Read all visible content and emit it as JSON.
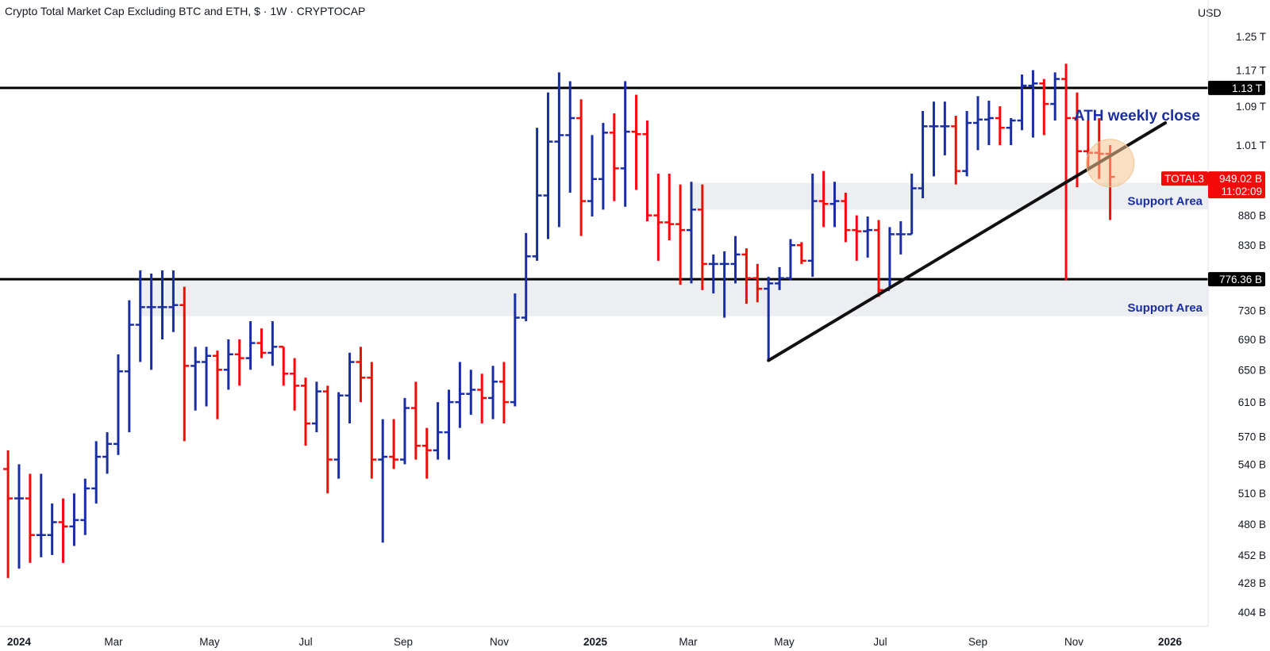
{
  "header": {
    "title": "Crypto Total Market Cap Excluding BTC and ETH, $ · 1W · CRYPTOCAP",
    "currency": "USD"
  },
  "colors": {
    "up": "#1a2ea3",
    "down": "#f50a0a",
    "level_line": "#000000",
    "support_zone": "#eceef1",
    "highlight": "#f6c48f",
    "annotation": "#1a2ea3"
  },
  "chart_data": {
    "type": "bar",
    "style": "ohlc",
    "timeframe": "1W",
    "symbol": "TOTAL3",
    "y_scale": "log",
    "ylim": [
      385000000000,
      1320000000000
    ],
    "y_ticks": [
      {
        "value": 1250000000000,
        "label": "1.25 T"
      },
      {
        "value": 1170000000000,
        "label": "1.17 T"
      },
      {
        "value": 1090000000000,
        "label": "1.09 T"
      },
      {
        "value": 1010000000000,
        "label": "1.01 T"
      },
      {
        "value": 880000000000,
        "label": "880 B"
      },
      {
        "value": 830000000000,
        "label": "830 B"
      },
      {
        "value": 730000000000,
        "label": "730 B"
      },
      {
        "value": 690000000000,
        "label": "690 B"
      },
      {
        "value": 650000000000,
        "label": "650 B"
      },
      {
        "value": 610000000000,
        "label": "610 B"
      },
      {
        "value": 570000000000,
        "label": "570 B"
      },
      {
        "value": 540000000000,
        "label": "540 B"
      },
      {
        "value": 510000000000,
        "label": "510 B"
      },
      {
        "value": 480000000000,
        "label": "480 B"
      },
      {
        "value": 452000000000,
        "label": "452 B"
      },
      {
        "value": 428000000000,
        "label": "428 B"
      },
      {
        "value": 404000000000,
        "label": "404 B"
      }
    ],
    "x_ticks": [
      {
        "date": "2024-01-01",
        "label": "2024",
        "bold": true
      },
      {
        "date": "2024-03-01",
        "label": "Mar",
        "bold": false
      },
      {
        "date": "2024-05-01",
        "label": "May",
        "bold": false
      },
      {
        "date": "2024-07-01",
        "label": "Jul",
        "bold": false
      },
      {
        "date": "2024-09-01",
        "label": "Sep",
        "bold": false
      },
      {
        "date": "2024-11-01",
        "label": "Nov",
        "bold": false
      },
      {
        "date": "2025-01-01",
        "label": "2025",
        "bold": true
      },
      {
        "date": "2025-03-01",
        "label": "Mar",
        "bold": false
      },
      {
        "date": "2025-05-01",
        "label": "May",
        "bold": false
      },
      {
        "date": "2025-07-01",
        "label": "Jul",
        "bold": false
      },
      {
        "date": "2025-09-01",
        "label": "Sep",
        "bold": false
      },
      {
        "date": "2025-11-01",
        "label": "Nov",
        "bold": false
      },
      {
        "date": "2026-01-01",
        "label": "2026",
        "bold": true
      }
    ],
    "bars": [
      {
        "date": "2023-12-25",
        "o": 535,
        "h": 555,
        "l": 432,
        "c": 505
      },
      {
        "date": "2024-01-01",
        "o": 505,
        "h": 540,
        "l": 440,
        "c": 505
      },
      {
        "date": "2024-01-08",
        "o": 505,
        "h": 530,
        "l": 445,
        "c": 470
      },
      {
        "date": "2024-01-15",
        "o": 470,
        "h": 530,
        "l": 450,
        "c": 470
      },
      {
        "date": "2024-01-22",
        "o": 470,
        "h": 500,
        "l": 452,
        "c": 482
      },
      {
        "date": "2024-01-29",
        "o": 482,
        "h": 505,
        "l": 445,
        "c": 478
      },
      {
        "date": "2024-02-05",
        "o": 478,
        "h": 510,
        "l": 460,
        "c": 484
      },
      {
        "date": "2024-02-12",
        "o": 484,
        "h": 525,
        "l": 470,
        "c": 515
      },
      {
        "date": "2024-02-19",
        "o": 515,
        "h": 565,
        "l": 500,
        "c": 548
      },
      {
        "date": "2024-02-26",
        "o": 548,
        "h": 575,
        "l": 530,
        "c": 562
      },
      {
        "date": "2024-03-04",
        "o": 562,
        "h": 670,
        "l": 550,
        "c": 648
      },
      {
        "date": "2024-03-11",
        "o": 648,
        "h": 745,
        "l": 575,
        "c": 710
      },
      {
        "date": "2024-03-18",
        "o": 710,
        "h": 790,
        "l": 660,
        "c": 735
      },
      {
        "date": "2024-03-25",
        "o": 735,
        "h": 785,
        "l": 650,
        "c": 735
      },
      {
        "date": "2024-04-01",
        "o": 735,
        "h": 790,
        "l": 690,
        "c": 735
      },
      {
        "date": "2024-04-08",
        "o": 735,
        "h": 790,
        "l": 700,
        "c": 738
      },
      {
        "date": "2024-04-15",
        "o": 738,
        "h": 765,
        "l": 565,
        "c": 655
      },
      {
        "date": "2024-04-22",
        "o": 655,
        "h": 680,
        "l": 600,
        "c": 660
      },
      {
        "date": "2024-04-29",
        "o": 660,
        "h": 680,
        "l": 605,
        "c": 668
      },
      {
        "date": "2024-05-06",
        "o": 668,
        "h": 675,
        "l": 590,
        "c": 650
      },
      {
        "date": "2024-05-13",
        "o": 650,
        "h": 690,
        "l": 625,
        "c": 670
      },
      {
        "date": "2024-05-20",
        "o": 670,
        "h": 690,
        "l": 630,
        "c": 665
      },
      {
        "date": "2024-05-27",
        "o": 665,
        "h": 715,
        "l": 650,
        "c": 685
      },
      {
        "date": "2024-06-03",
        "o": 685,
        "h": 705,
        "l": 665,
        "c": 672
      },
      {
        "date": "2024-06-10",
        "o": 672,
        "h": 715,
        "l": 655,
        "c": 680
      },
      {
        "date": "2024-06-17",
        "o": 680,
        "h": 680,
        "l": 630,
        "c": 645
      },
      {
        "date": "2024-06-24",
        "o": 645,
        "h": 665,
        "l": 600,
        "c": 630
      },
      {
        "date": "2024-07-01",
        "o": 630,
        "h": 640,
        "l": 560,
        "c": 585
      },
      {
        "date": "2024-07-08",
        "o": 585,
        "h": 635,
        "l": 575,
        "c": 623
      },
      {
        "date": "2024-07-15",
        "o": 623,
        "h": 630,
        "l": 510,
        "c": 545
      },
      {
        "date": "2024-07-22",
        "o": 545,
        "h": 622,
        "l": 525,
        "c": 618
      },
      {
        "date": "2024-07-29",
        "o": 618,
        "h": 672,
        "l": 585,
        "c": 660
      },
      {
        "date": "2024-08-05",
        "o": 660,
        "h": 680,
        "l": 610,
        "c": 640
      },
      {
        "date": "2024-08-12",
        "o": 640,
        "h": 660,
        "l": 525,
        "c": 545
      },
      {
        "date": "2024-08-19",
        "o": 545,
        "h": 590,
        "l": 463,
        "c": 548
      },
      {
        "date": "2024-08-26",
        "o": 548,
        "h": 590,
        "l": 535,
        "c": 545
      },
      {
        "date": "2024-09-02",
        "o": 545,
        "h": 615,
        "l": 540,
        "c": 603
      },
      {
        "date": "2024-09-09",
        "o": 603,
        "h": 635,
        "l": 545,
        "c": 560
      },
      {
        "date": "2024-09-16",
        "o": 560,
        "h": 580,
        "l": 525,
        "c": 555
      },
      {
        "date": "2024-09-23",
        "o": 555,
        "h": 610,
        "l": 545,
        "c": 575
      },
      {
        "date": "2024-09-30",
        "o": 575,
        "h": 625,
        "l": 545,
        "c": 610
      },
      {
        "date": "2024-10-07",
        "o": 610,
        "h": 660,
        "l": 580,
        "c": 620
      },
      {
        "date": "2024-10-14",
        "o": 620,
        "h": 650,
        "l": 595,
        "c": 625
      },
      {
        "date": "2024-10-21",
        "o": 625,
        "h": 645,
        "l": 585,
        "c": 615
      },
      {
        "date": "2024-10-28",
        "o": 615,
        "h": 655,
        "l": 590,
        "c": 635
      },
      {
        "date": "2024-11-04",
        "o": 635,
        "h": 660,
        "l": 585,
        "c": 610
      },
      {
        "date": "2024-11-11",
        "o": 610,
        "h": 755,
        "l": 605,
        "c": 720
      },
      {
        "date": "2024-11-18",
        "o": 720,
        "h": 850,
        "l": 715,
        "c": 812
      },
      {
        "date": "2024-11-25",
        "o": 812,
        "h": 1045,
        "l": 805,
        "c": 915
      },
      {
        "date": "2024-12-02",
        "o": 915,
        "h": 1120,
        "l": 840,
        "c": 1017
      },
      {
        "date": "2024-12-09",
        "o": 1017,
        "h": 1165,
        "l": 860,
        "c": 1030
      },
      {
        "date": "2024-12-16",
        "o": 1030,
        "h": 1145,
        "l": 920,
        "c": 1065
      },
      {
        "date": "2024-12-23",
        "o": 1065,
        "h": 1105,
        "l": 845,
        "c": 905
      },
      {
        "date": "2024-12-30",
        "o": 905,
        "h": 1030,
        "l": 878,
        "c": 945
      },
      {
        "date": "2025-01-06",
        "o": 945,
        "h": 1055,
        "l": 890,
        "c": 1035
      },
      {
        "date": "2025-01-13",
        "o": 1035,
        "h": 1075,
        "l": 905,
        "c": 965
      },
      {
        "date": "2025-01-20",
        "o": 965,
        "h": 1145,
        "l": 895,
        "c": 1037
      },
      {
        "date": "2025-01-27",
        "o": 1037,
        "h": 1115,
        "l": 925,
        "c": 1032
      },
      {
        "date": "2025-02-03",
        "o": 1032,
        "h": 1060,
        "l": 870,
        "c": 880
      },
      {
        "date": "2025-02-10",
        "o": 880,
        "h": 955,
        "l": 805,
        "c": 868
      },
      {
        "date": "2025-02-17",
        "o": 868,
        "h": 955,
        "l": 838,
        "c": 865
      },
      {
        "date": "2025-02-24",
        "o": 865,
        "h": 935,
        "l": 768,
        "c": 855
      },
      {
        "date": "2025-03-03",
        "o": 855,
        "h": 940,
        "l": 770,
        "c": 890
      },
      {
        "date": "2025-03-10",
        "o": 890,
        "h": 935,
        "l": 760,
        "c": 800
      },
      {
        "date": "2025-03-17",
        "o": 800,
        "h": 815,
        "l": 755,
        "c": 800
      },
      {
        "date": "2025-03-24",
        "o": 800,
        "h": 820,
        "l": 720,
        "c": 800
      },
      {
        "date": "2025-03-31",
        "o": 800,
        "h": 845,
        "l": 770,
        "c": 815
      },
      {
        "date": "2025-04-07",
        "o": 815,
        "h": 825,
        "l": 740,
        "c": 778
      },
      {
        "date": "2025-04-14",
        "o": 778,
        "h": 800,
        "l": 742,
        "c": 762
      },
      {
        "date": "2025-04-21",
        "o": 762,
        "h": 780,
        "l": 662,
        "c": 770
      },
      {
        "date": "2025-04-28",
        "o": 770,
        "h": 795,
        "l": 760,
        "c": 778
      },
      {
        "date": "2025-05-05",
        "o": 778,
        "h": 840,
        "l": 775,
        "c": 830
      },
      {
        "date": "2025-05-12",
        "o": 830,
        "h": 835,
        "l": 800,
        "c": 805
      },
      {
        "date": "2025-05-19",
        "o": 805,
        "h": 955,
        "l": 780,
        "c": 905
      },
      {
        "date": "2025-05-26",
        "o": 905,
        "h": 960,
        "l": 860,
        "c": 900
      },
      {
        "date": "2025-06-02",
        "o": 900,
        "h": 940,
        "l": 860,
        "c": 905
      },
      {
        "date": "2025-06-09",
        "o": 905,
        "h": 920,
        "l": 835,
        "c": 855
      },
      {
        "date": "2025-06-16",
        "o": 855,
        "h": 880,
        "l": 805,
        "c": 853
      },
      {
        "date": "2025-06-23",
        "o": 853,
        "h": 878,
        "l": 810,
        "c": 855
      },
      {
        "date": "2025-06-30",
        "o": 855,
        "h": 872,
        "l": 750,
        "c": 760
      },
      {
        "date": "2025-07-07",
        "o": 760,
        "h": 860,
        "l": 765,
        "c": 848
      },
      {
        "date": "2025-07-14",
        "o": 848,
        "h": 870,
        "l": 815,
        "c": 848
      },
      {
        "date": "2025-07-21",
        "o": 848,
        "h": 955,
        "l": 848,
        "c": 928
      },
      {
        "date": "2025-07-28",
        "o": 928,
        "h": 1080,
        "l": 910,
        "c": 1048
      },
      {
        "date": "2025-08-04",
        "o": 1048,
        "h": 1100,
        "l": 950,
        "c": 1048
      },
      {
        "date": "2025-08-11",
        "o": 1048,
        "h": 1100,
        "l": 990,
        "c": 1048
      },
      {
        "date": "2025-08-18",
        "o": 1048,
        "h": 1070,
        "l": 935,
        "c": 960
      },
      {
        "date": "2025-08-25",
        "o": 960,
        "h": 1080,
        "l": 950,
        "c": 1055
      },
      {
        "date": "2025-09-01",
        "o": 1055,
        "h": 1112,
        "l": 1000,
        "c": 1062
      },
      {
        "date": "2025-09-08",
        "o": 1062,
        "h": 1102,
        "l": 1010,
        "c": 1065
      },
      {
        "date": "2025-09-15",
        "o": 1065,
        "h": 1090,
        "l": 1010,
        "c": 1045
      },
      {
        "date": "2025-09-22",
        "o": 1045,
        "h": 1065,
        "l": 1010,
        "c": 1060
      },
      {
        "date": "2025-09-29",
        "o": 1060,
        "h": 1160,
        "l": 1040,
        "c": 1135
      },
      {
        "date": "2025-10-06",
        "o": 1135,
        "h": 1170,
        "l": 1025,
        "c": 1140
      },
      {
        "date": "2025-10-13",
        "o": 1140,
        "h": 1150,
        "l": 1030,
        "c": 1095
      },
      {
        "date": "2025-10-20",
        "o": 1095,
        "h": 1165,
        "l": 1060,
        "c": 1150
      },
      {
        "date": "2025-10-27",
        "o": 1150,
        "h": 1185,
        "l": 775,
        "c": 1065
      },
      {
        "date": "2025-11-03",
        "o": 1065,
        "h": 1120,
        "l": 930,
        "c": 998
      },
      {
        "date": "2025-11-10",
        "o": 998,
        "h": 1060,
        "l": 960,
        "c": 995
      },
      {
        "date": "2025-11-17",
        "o": 995,
        "h": 1065,
        "l": 945,
        "c": 993
      },
      {
        "date": "2025-11-24",
        "o": 993,
        "h": 1010,
        "l": 872,
        "c": 949
      }
    ],
    "horizontal_levels": [
      {
        "value": 1130000000000,
        "label": "1.13 T"
      },
      {
        "value": 776360000000,
        "label": "776.36 B"
      }
    ],
    "support_zones": [
      {
        "low": 890000000000,
        "high": 938000000000,
        "start": "2025-03-03",
        "label": "Support Area"
      },
      {
        "low": 722000000000,
        "high": 776360000000,
        "start": "2024-03-18",
        "label": "Support Area"
      }
    ],
    "trendline": {
      "from": {
        "date": "2025-04-21",
        "value": 662000000000
      },
      "to": {
        "date": "2025-12-29",
        "value": 1055000000000
      }
    },
    "highlight_circle": {
      "date": "2025-11-24",
      "value": 975000000000
    },
    "annotations": [
      {
        "text": "ATH weekly close",
        "date": "2025-11-10",
        "value": 1100000000000
      }
    ],
    "last_price": {
      "symbol": "TOTAL3",
      "value_label": "949.02 B",
      "countdown": "11:02:09",
      "value": 949020000000
    }
  }
}
